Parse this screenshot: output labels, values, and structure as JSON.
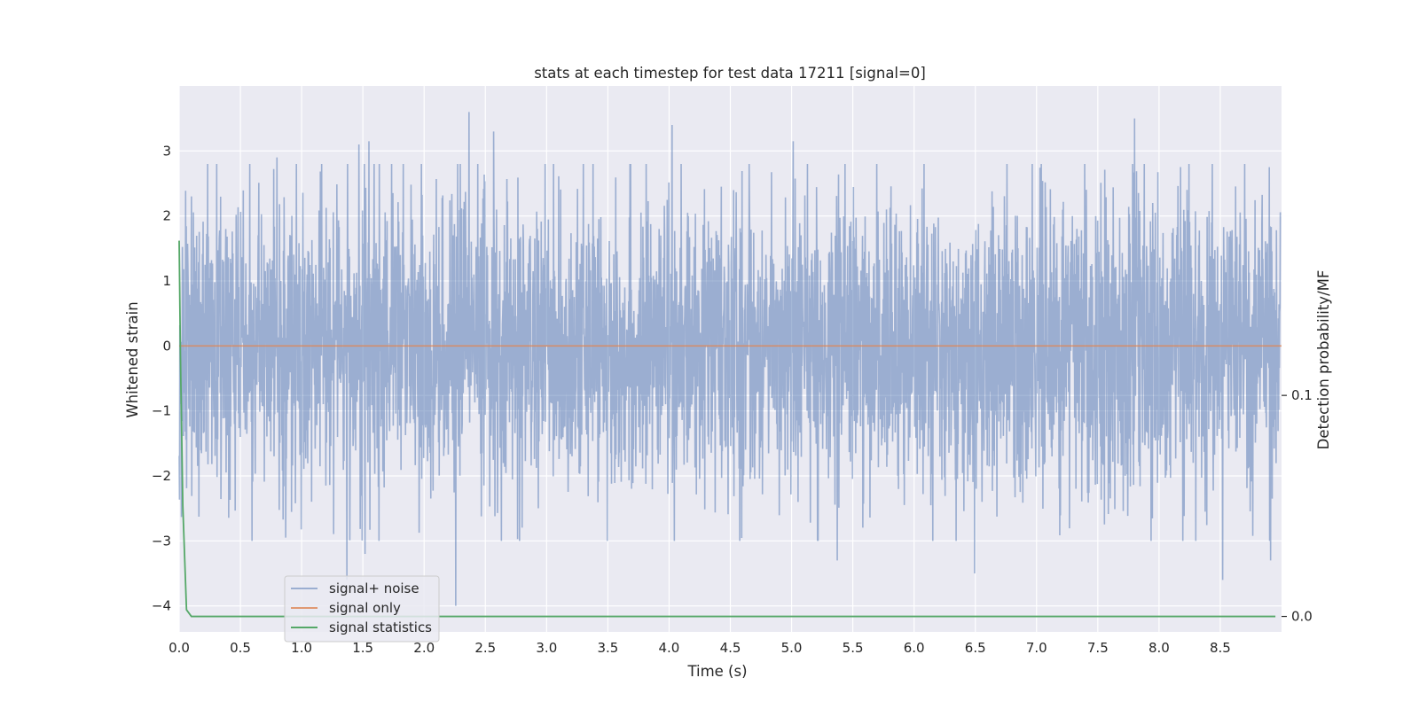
{
  "chart_data": {
    "type": "line",
    "title": "stats at each timestep for test data 17211 [signal=0]",
    "xlabel": "Time (s)",
    "ylabel": "Whitened strain",
    "y2label": "Detection probability/MF",
    "xlim": [
      0.0,
      9.0
    ],
    "ylim": [
      -4.4,
      4.0
    ],
    "y2lim": [
      -0.007,
      0.24
    ],
    "xticks": [
      0.0,
      0.5,
      1.0,
      1.5,
      2.0,
      2.5,
      3.0,
      3.5,
      4.0,
      4.5,
      5.0,
      5.5,
      6.0,
      6.5,
      7.0,
      7.5,
      8.0,
      8.5
    ],
    "xtick_labels": [
      "0.0",
      "0.5",
      "1.0",
      "1.5",
      "2.0",
      "2.5",
      "3.0",
      "3.5",
      "4.0",
      "4.5",
      "5.0",
      "5.5",
      "6.0",
      "6.5",
      "7.0",
      "7.5",
      "8.0",
      "8.5"
    ],
    "yticks": [
      -4,
      -3,
      -2,
      -1,
      0,
      1,
      2,
      3
    ],
    "ytick_labels": [
      "−4",
      "−3",
      "−2",
      "−1",
      "0",
      "1",
      "2",
      "3"
    ],
    "y2ticks": [
      0.0,
      0.1
    ],
    "y2tick_labels": [
      "0.0",
      "0.1"
    ],
    "grid": true,
    "legend_position": "lower-left",
    "series": [
      {
        "name": "signal+ noise",
        "color": "#4c72b0",
        "axis": "left",
        "kind": "noise_band",
        "note_values": "dense whitened-noise trace, values roughly within −3.9 to 3.6",
        "peaks": [
          [
            0.1,
            2.3
          ],
          [
            0.8,
            2.9
          ],
          [
            1.47,
            3.1
          ],
          [
            1.55,
            3.15
          ],
          [
            2.37,
            3.6
          ],
          [
            2.57,
            3.3
          ],
          [
            4.03,
            3.4
          ],
          [
            5.02,
            3.15
          ],
          [
            7.81,
            3.5
          ],
          [
            8.91,
            2.75
          ]
        ],
        "troughs": [
          [
            1.37,
            -3.6
          ],
          [
            1.52,
            -3.2
          ],
          [
            2.26,
            -4.0
          ],
          [
            2.37,
            -3.3
          ],
          [
            3.5,
            -3.0
          ],
          [
            5.38,
            -3.3
          ],
          [
            6.5,
            -3.5
          ],
          [
            8.53,
            -3.6
          ],
          [
            8.92,
            -3.3
          ]
        ]
      },
      {
        "name": "signal only",
        "color": "#dd8452",
        "axis": "left",
        "x": [
          0.0,
          9.0
        ],
        "y": [
          0.0,
          0.0
        ]
      },
      {
        "name": "signal statistics",
        "color": "#55a868",
        "axis": "right",
        "x": [
          0.0,
          0.01,
          0.03,
          0.06,
          0.1,
          0.15,
          0.2,
          0.3,
          0.4,
          1.0,
          2.0,
          3.0,
          4.0,
          5.0,
          6.0,
          7.0,
          8.0,
          8.95
        ],
        "y": [
          0.17,
          0.12,
          0.05,
          0.003,
          0.0,
          0.0,
          0.0,
          0.0,
          0.0,
          0.0,
          0.0,
          0.0,
          0.0,
          0.0,
          0.0,
          0.0,
          0.0,
          0.0
        ]
      }
    ],
    "colors": {
      "plot_background": "#eaeaf2",
      "grid": "#ffffff",
      "text": "#262626"
    }
  }
}
